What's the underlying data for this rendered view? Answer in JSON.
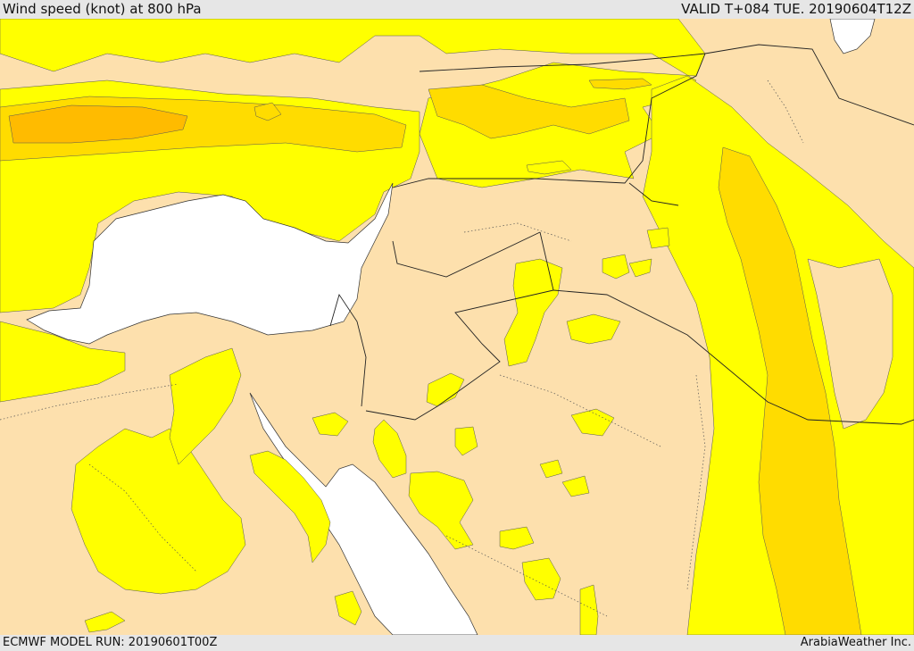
{
  "header": {
    "title": "Wind speed (knot) at 800 hPa",
    "valid_time": "VALID T+084 TUE. 20190604T12Z"
  },
  "footer": {
    "model_run": "ECMWF MODEL RUN: 20190601T00Z",
    "credit": "ArabiaWeather Inc."
  },
  "colors": {
    "land_base": "#fde0ad",
    "band_yellow": "#ffff00",
    "band_gold": "#ffdc00",
    "band_orange": "#ffbb00",
    "sea": "#ffffff",
    "border": "#222222"
  },
  "legend_note": ""
}
